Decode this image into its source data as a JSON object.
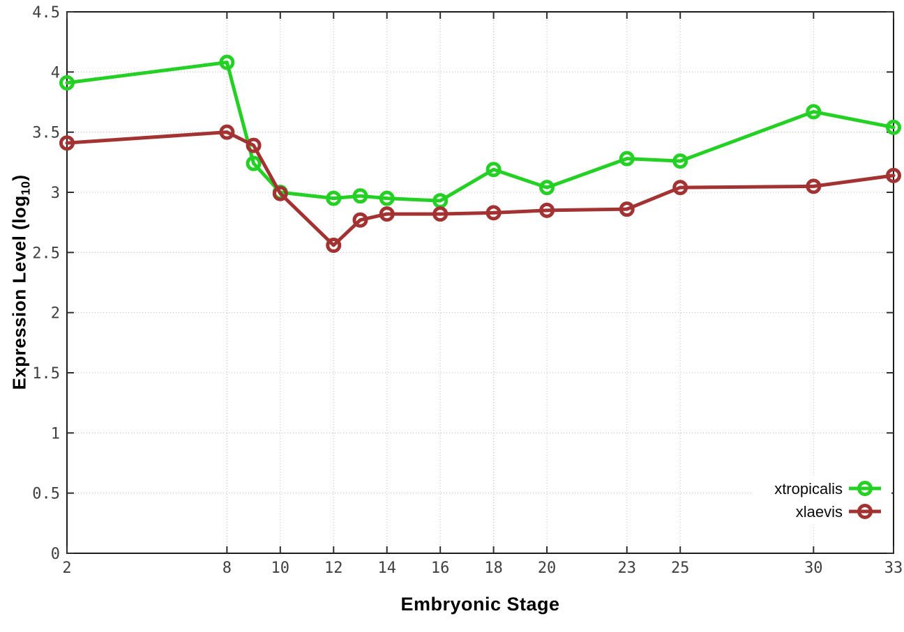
{
  "figure": {
    "background": "#ffffff",
    "border_color": "#1c1c1c",
    "grid_color": "#b8b8b8",
    "tick_color": "#2e2e2e",
    "tick_label_color": "#3f3f3f"
  },
  "chart_data": {
    "type": "line",
    "title": "",
    "xlabel": "Embryonic Stage",
    "ylabel": "Expression Level (log10)",
    "ylabel_parts": {
      "prefix": "Expression Level (log",
      "sub": "10",
      "suffix": ")"
    },
    "xlim": [
      2,
      33
    ],
    "ylim": [
      0,
      4.5
    ],
    "x_ticks": [
      2,
      8,
      10,
      12,
      14,
      16,
      18,
      20,
      23,
      25,
      30,
      33
    ],
    "y_ticks": [
      0,
      0.5,
      1,
      1.5,
      2,
      2.5,
      3,
      3.5,
      4,
      4.5
    ],
    "grid": true,
    "grid_style": "dotted",
    "legend_position": "bottom-right",
    "x": [
      2,
      8,
      9,
      10,
      12,
      13,
      14,
      16,
      18,
      20,
      23,
      25,
      30,
      33
    ],
    "series": [
      {
        "name": "xtropicalis",
        "color": "#23d023",
        "marker": "open-circle",
        "values": [
          3.91,
          4.08,
          3.24,
          3.0,
          2.95,
          2.97,
          2.95,
          2.93,
          3.19,
          3.04,
          3.28,
          3.26,
          3.67,
          3.54
        ]
      },
      {
        "name": "xlaevis",
        "color": "#a33232",
        "marker": "open-circle",
        "values": [
          3.41,
          3.5,
          3.39,
          2.99,
          2.56,
          2.77,
          2.82,
          2.82,
          2.83,
          2.85,
          2.86,
          3.04,
          3.05,
          3.14
        ]
      }
    ]
  }
}
